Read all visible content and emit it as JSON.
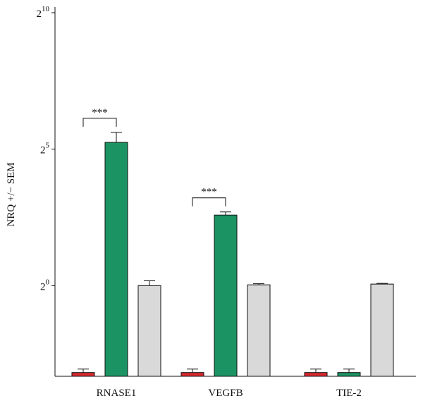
{
  "chart_data": {
    "type": "bar",
    "y_label": "NRQ +/− SEM",
    "log_scale": true,
    "categories": [
      "RNASE1",
      "VEGFB",
      "TIE-2"
    ],
    "series": [
      {
        "color": "#d7282f",
        "values": [
          0.11,
          0.11,
          0.11
        ],
        "errors": [
          0.01,
          0.01,
          0.01
        ]
      },
      {
        "color": "#1b9362",
        "values": [
          38,
          6.0,
          0.11
        ],
        "errors": [
          11,
          0.5,
          0.01
        ]
      },
      {
        "color": "#d9d9d9",
        "values": [
          1.0,
          1.02,
          1.04
        ],
        "errors": [
          0.13,
          0.03,
          0.02
        ]
      }
    ],
    "ylim": [
      0.1,
      1024
    ],
    "yticks": [
      {
        "value": 1,
        "label": "2^0"
      },
      {
        "value": 32,
        "label": "2^5"
      },
      {
        "value": 1024,
        "label": "2^10"
      }
    ],
    "annotations": [
      {
        "text": "***",
        "category": 0
      },
      {
        "text": "***",
        "category": 1
      }
    ]
  }
}
